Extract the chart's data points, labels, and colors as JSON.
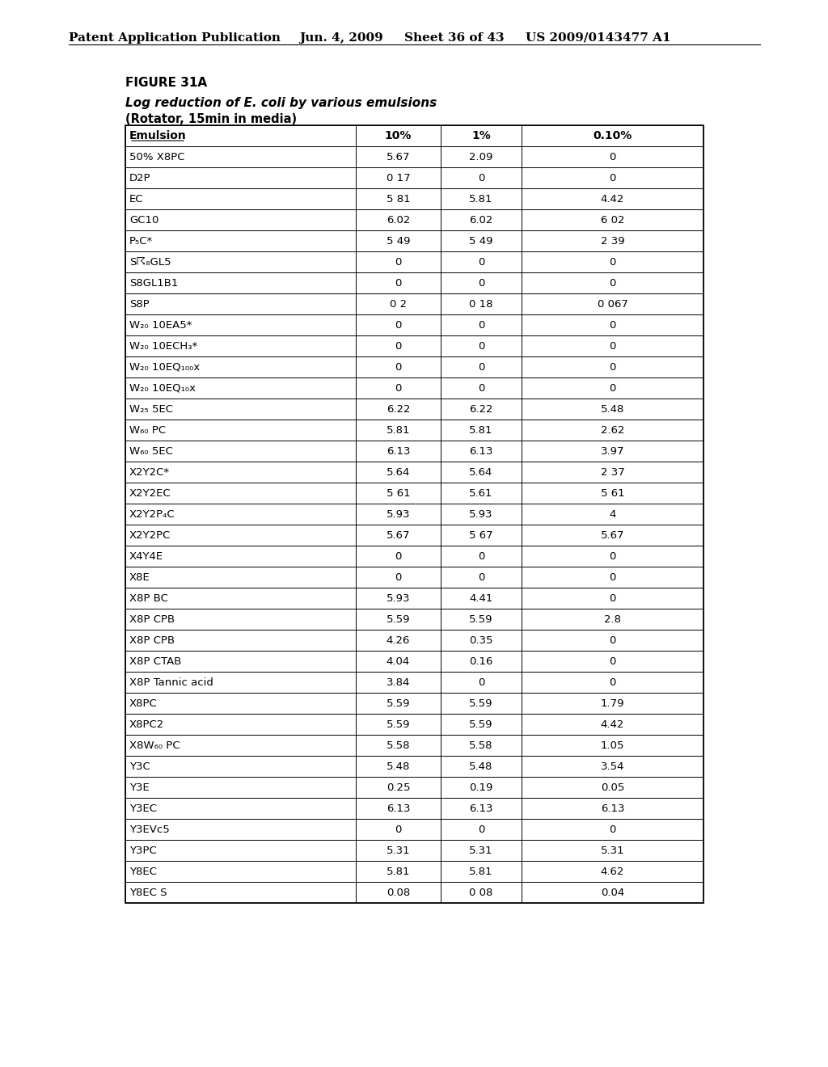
{
  "header_text": "Patent Application Publication",
  "date_text": "Jun. 4, 2009",
  "sheet_text": "Sheet 36 of 43",
  "patent_text": "US 2009/0143477 A1",
  "figure_label": "FIGURE 31A",
  "subtitle": "Log reduction of E. coli by various emulsions",
  "subtitle2": "(Rotator, 15min in media)",
  "col_headers": [
    "Emulsion",
    "10%",
    "1%",
    "0.10%"
  ],
  "rows": [
    [
      "50% X8PC",
      "5.67",
      "2.09",
      "0"
    ],
    [
      "D2P",
      "0 17",
      "0",
      "0"
    ],
    [
      "EC",
      "5 81",
      "5.81",
      "4.42"
    ],
    [
      "GC10",
      "6.02",
      "6.02",
      "6 02"
    ],
    [
      "P₅C*",
      "5 49",
      "5 49",
      "2 39"
    ],
    [
      "S☈₈GL5",
      "0",
      "0",
      "0"
    ],
    [
      "S8GL1B1",
      "0",
      "0",
      "0"
    ],
    [
      "S8P",
      "0 2",
      "0 18",
      "0 067"
    ],
    [
      "W₂₀ 10EA5*",
      "0",
      "0",
      "0"
    ],
    [
      "W₂₀ 10ECH₃*",
      "0",
      "0",
      "0"
    ],
    [
      "W₂₀ 10EQ₁₀₀x",
      "0",
      "0",
      "0"
    ],
    [
      "W₂₀ 10EQ₁₀x",
      "0",
      "0",
      "0"
    ],
    [
      "W₂₅ 5EC",
      "6.22",
      "6.22",
      "5.48"
    ],
    [
      "W₆₀ PC",
      "5.81",
      "5.81",
      "2.62"
    ],
    [
      "W₆₀ 5EC",
      "6.13",
      "6.13",
      "3.97"
    ],
    [
      "X2Y2C*",
      "5.64",
      "5.64",
      "2 37"
    ],
    [
      "X2Y2EC",
      "5 61",
      "5.61",
      "5 61"
    ],
    [
      "X2Y2P₄C",
      "5.93",
      "5.93",
      "4"
    ],
    [
      "X2Y2PC",
      "5.67",
      "5 67",
      "5.67"
    ],
    [
      "X4Y4E",
      "0",
      "0",
      "0"
    ],
    [
      "X8E",
      "0",
      "0",
      "0"
    ],
    [
      "X8P BC",
      "5.93",
      "4.41",
      "0"
    ],
    [
      "X8P CPB",
      "5.59",
      "5.59",
      "2.8"
    ],
    [
      "X8P CPB",
      "4.26",
      "0.35",
      "0"
    ],
    [
      "X8P CTAB",
      "4.04",
      "0.16",
      "0"
    ],
    [
      "X8P Tannic acid",
      "3.84",
      "0",
      "0"
    ],
    [
      "X8PC",
      "5.59",
      "5.59",
      "1.79"
    ],
    [
      "X8PC2",
      "5.59",
      "5.59",
      "4.42"
    ],
    [
      "X8W₆₀ PC",
      "5.58",
      "5.58",
      "1.05"
    ],
    [
      "Y3C",
      "5.48",
      "5.48",
      "3.54"
    ],
    [
      "Y3E",
      "0.25",
      "0.19",
      "0.05"
    ],
    [
      "Y3EC",
      "6.13",
      "6.13",
      "6.13"
    ],
    [
      "Y3EVc5",
      "0",
      "0",
      "0"
    ],
    [
      "Y3PC",
      "5.31",
      "5.31",
      "5.31"
    ],
    [
      "Y8EC",
      "5.81",
      "5.81",
      "4.62"
    ],
    [
      "Y8EC S",
      "0.08",
      "0 08",
      "0.04"
    ]
  ],
  "bg_color": "#ffffff",
  "text_color": "#000000",
  "header_underline": true
}
